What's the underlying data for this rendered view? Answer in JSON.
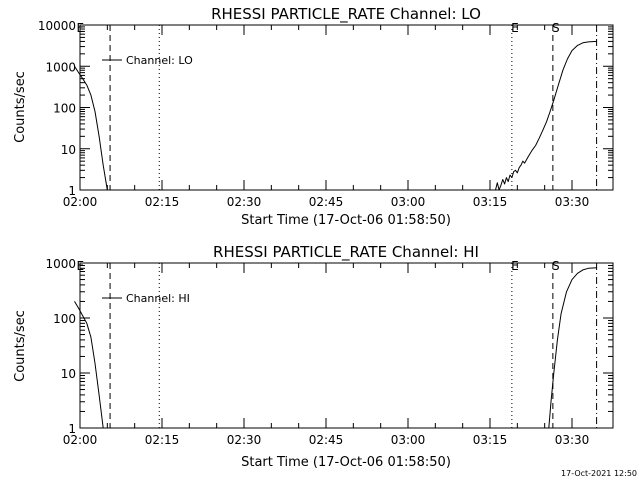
{
  "colors": {
    "background": "#ffffff",
    "foreground": "#000000"
  },
  "footer": {
    "date": "17-Oct-2021 12:50"
  },
  "chart_data": [
    {
      "type": "line",
      "title": "RHESSI PARTICLE_RATE Channel: LO",
      "xlabel": "Start Time (17-Oct-06 01:58:50)",
      "ylabel": "Counts/sec",
      "x_ticks": [
        "02:00",
        "02:15",
        "02:30",
        "02:45",
        "03:00",
        "03:15",
        "03:30"
      ],
      "y_ticks": [
        "1",
        "10",
        "100",
        "1000",
        "10000"
      ],
      "ylim": [
        1,
        10000
      ],
      "yscale": "log",
      "legend": {
        "label": "Channel: LO",
        "placement": "top-left"
      },
      "markers": [
        {
          "label": "E",
          "time": "01:59:30",
          "style": "none"
        },
        {
          "label": "",
          "time": "02:05:30",
          "style": "dashed"
        },
        {
          "label": "",
          "time": "02:14:30",
          "style": "dotted"
        },
        {
          "label": "E",
          "time": "03:19:00",
          "style": "dotted"
        },
        {
          "label": "S",
          "time": "03:26:30",
          "style": "dashed"
        },
        {
          "label": "",
          "time": "03:34:30",
          "style": "dashdot"
        }
      ],
      "series": [
        {
          "segments": [
            [
              [
                "01:59:00",
                1000
              ],
              [
                "01:59:45",
                700
              ],
              [
                "02:00:30",
                500
              ],
              [
                "02:01:15",
                350
              ],
              [
                "02:02:00",
                200
              ],
              [
                "02:02:45",
                80
              ],
              [
                "02:03:30",
                20
              ],
              [
                "02:04:15",
                4
              ],
              [
                "02:05:00",
                1
              ]
            ],
            [
              [
                "03:16:00",
                1
              ],
              [
                "03:16:20",
                1.5
              ],
              [
                "03:16:40",
                1
              ],
              [
                "03:17:00",
                1.3
              ],
              [
                "03:17:20",
                1.8
              ],
              [
                "03:17:40",
                1.4
              ],
              [
                "03:18:00",
                2
              ],
              [
                "03:18:20",
                1.6
              ],
              [
                "03:18:40",
                2.3
              ],
              [
                "03:19:00",
                2
              ],
              [
                "03:19:20",
                2.8
              ],
              [
                "03:19:40",
                3
              ],
              [
                "03:20:00",
                2.6
              ],
              [
                "03:20:20",
                3.5
              ],
              [
                "03:20:40",
                4
              ],
              [
                "03:21:00",
                5
              ],
              [
                "03:21:20",
                4.5
              ],
              [
                "03:22:00",
                6.5
              ],
              [
                "03:22:40",
                9
              ],
              [
                "03:23:20",
                12
              ],
              [
                "03:24:00",
                18
              ],
              [
                "03:24:40",
                28
              ],
              [
                "03:25:20",
                45
              ],
              [
                "03:26:00",
                80
              ],
              [
                "03:26:40",
                150
              ],
              [
                "03:27:30",
                350
              ],
              [
                "03:28:20",
                800
              ],
              [
                "03:29:10",
                1500
              ],
              [
                "03:30:00",
                2400
              ],
              [
                "03:31:00",
                3200
              ],
              [
                "03:32:00",
                3700
              ],
              [
                "03:33:00",
                3900
              ],
              [
                "03:34:30",
                4000
              ]
            ]
          ]
        }
      ]
    },
    {
      "type": "line",
      "title": "RHESSI PARTICLE_RATE Channel: HI",
      "xlabel": "Start Time (17-Oct-06 01:58:50)",
      "ylabel": "Counts/sec",
      "x_ticks": [
        "02:00",
        "02:15",
        "02:30",
        "02:45",
        "03:00",
        "03:15",
        "03:30"
      ],
      "y_ticks": [
        "1",
        "10",
        "100",
        "1000"
      ],
      "ylim": [
        1,
        1000
      ],
      "yscale": "log",
      "legend": {
        "label": "Channel: HI",
        "placement": "top-left"
      },
      "markers": [
        {
          "label": "E",
          "time": "01:59:30",
          "style": "none"
        },
        {
          "label": "",
          "time": "02:05:30",
          "style": "dashed"
        },
        {
          "label": "",
          "time": "02:14:30",
          "style": "dotted"
        },
        {
          "label": "E",
          "time": "03:19:00",
          "style": "dotted"
        },
        {
          "label": "S",
          "time": "03:26:30",
          "style": "dashed"
        },
        {
          "label": "",
          "time": "03:34:30",
          "style": "dashdot"
        }
      ],
      "series": [
        {
          "segments": [
            [
              [
                "01:59:00",
                200
              ],
              [
                "01:59:45",
                150
              ],
              [
                "02:00:30",
                110
              ],
              [
                "02:01:15",
                80
              ],
              [
                "02:02:00",
                45
              ],
              [
                "02:02:45",
                15
              ],
              [
                "02:03:30",
                4
              ],
              [
                "02:04:15",
                1
              ]
            ],
            [
              [
                "03:25:45",
                1
              ],
              [
                "03:26:10",
                3
              ],
              [
                "03:26:40",
                10
              ],
              [
                "03:27:20",
                40
              ],
              [
                "03:28:00",
                120
              ],
              [
                "03:29:00",
                300
              ],
              [
                "03:30:00",
                500
              ],
              [
                "03:31:00",
                650
              ],
              [
                "03:32:00",
                750
              ],
              [
                "03:33:00",
                800
              ],
              [
                "03:34:30",
                820
              ]
            ]
          ]
        }
      ]
    }
  ]
}
